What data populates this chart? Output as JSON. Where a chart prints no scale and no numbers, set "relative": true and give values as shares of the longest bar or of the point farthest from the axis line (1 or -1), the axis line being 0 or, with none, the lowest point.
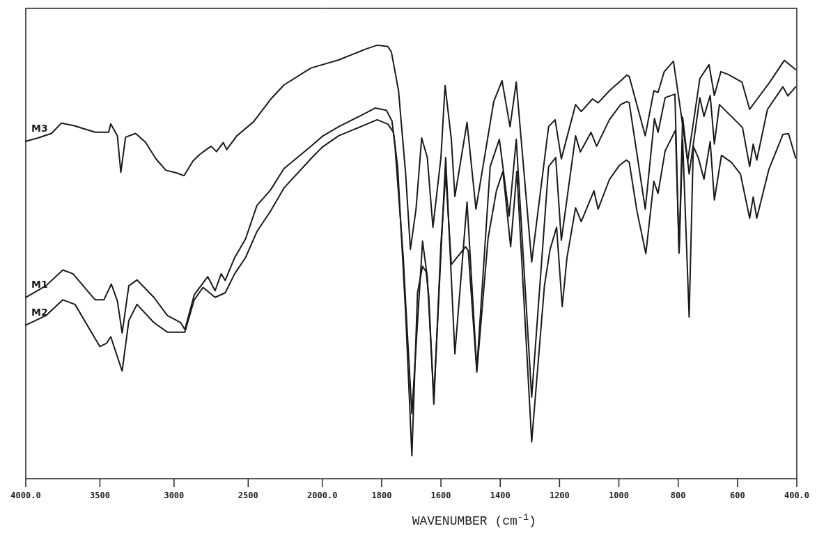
{
  "chart_data": [
    {
      "type": "line",
      "relative": true,
      "xlim": [
        4000,
        2000
      ],
      "xticks": [
        {
          "value": 4000,
          "label": "4000.0"
        },
        3500,
        3000,
        2500,
        {
          "value": 2000,
          "label": "2000.0"
        }
      ],
      "series": [
        {
          "name": "M3",
          "color": "#1a1a1a",
          "x": [
            4000,
            3918,
            3827,
            3759,
            3677,
            3532,
            3441,
            3427,
            3382,
            3359,
            3327,
            3259,
            3191,
            3123,
            3055,
            2986,
            2932,
            2873,
            2827,
            2782,
            2750,
            2714,
            2668,
            2645,
            2577,
            2464,
            2350,
            2259,
            2077,
            2000
          ],
          "values": [
            0.815,
            0.823,
            0.834,
            0.859,
            0.853,
            0.837,
            0.837,
            0.857,
            0.828,
            0.74,
            0.825,
            0.834,
            0.812,
            0.773,
            0.745,
            0.739,
            0.732,
            0.767,
            0.783,
            0.795,
            0.803,
            0.79,
            0.812,
            0.795,
            0.828,
            0.862,
            0.916,
            0.951,
            0.992,
            1
          ]
        },
        {
          "name": "M1",
          "color": "#1a1a1a",
          "x": [
            4000,
            3864,
            3750,
            3682,
            3532,
            3473,
            3423,
            3382,
            3350,
            3305,
            3250,
            3136,
            3045,
            2955,
            2927,
            2864,
            2773,
            2723,
            2682,
            2655,
            2591,
            2518,
            2441,
            2350,
            2259,
            2077,
            2000
          ],
          "values": [
            0.438,
            0.466,
            0.504,
            0.495,
            0.432,
            0.432,
            0.47,
            0.429,
            0.352,
            0.466,
            0.48,
            0.438,
            0.394,
            0.377,
            0.36,
            0.444,
            0.488,
            0.454,
            0.495,
            0.479,
            0.534,
            0.579,
            0.66,
            0.697,
            0.749,
            0.803,
            0.827
          ]
        },
        {
          "name": "M2",
          "color": "#1a1a1a",
          "x": [
            4000,
            3864,
            3750,
            3668,
            3500,
            3455,
            3427,
            3350,
            3305,
            3250,
            3136,
            3045,
            2927,
            2864,
            2805,
            2723,
            2655,
            2591,
            2518,
            2441,
            2350,
            2259,
            2077,
            2000
          ],
          "values": [
            0.371,
            0.394,
            0.432,
            0.421,
            0.319,
            0.327,
            0.343,
            0.26,
            0.382,
            0.421,
            0.377,
            0.354,
            0.354,
            0.432,
            0.462,
            0.438,
            0.449,
            0.495,
            0.534,
            0.597,
            0.646,
            0.702,
            0.773,
            0.801
          ]
        }
      ]
    },
    {
      "type": "line",
      "relative": true,
      "xlabel": "WAVENUMBER (cm$^{-1}$)",
      "xlim": [
        2000,
        400
      ],
      "xticks": [
        1800,
        1600,
        1400,
        1200,
        1000,
        800,
        600,
        {
          "value": 400,
          "label": "400.0"
        }
      ],
      "series": [
        {
          "color": "#1a1a1a",
          "x": [
            2000,
            1945,
            1850,
            1815,
            1779,
            1767,
            1743,
            1719,
            1703,
            1684,
            1665,
            1646,
            1627,
            1600,
            1586,
            1565,
            1553,
            1512,
            1482,
            1422,
            1394,
            1367,
            1346,
            1294,
            1237,
            1215,
            1194,
            1146,
            1127,
            1089,
            1070,
            1032,
            994,
            973,
            965,
            911,
            882,
            868,
            847,
            816,
            792,
            768,
            727,
            696,
            678,
            656,
            630,
            585,
            559,
            542,
            494,
            442,
            404
          ],
          "values": [
            0.955,
            0.966,
            0.992,
            1,
            0.997,
            0.984,
            0.895,
            0.703,
            0.529,
            0.622,
            0.786,
            0.741,
            0.58,
            0.741,
            0.907,
            0.783,
            0.651,
            0.822,
            0.622,
            0.87,
            0.918,
            0.812,
            0.915,
            0.5,
            0.812,
            0.828,
            0.738,
            0.863,
            0.847,
            0.876,
            0.867,
            0.895,
            0.918,
            0.931,
            0.928,
            0.791,
            0.895,
            0.891,
            0.939,
            0.963,
            0.85,
            0.732,
            0.923,
            0.955,
            0.884,
            0.939,
            0.932,
            0.915,
            0.852,
            0.868,
            0.912,
            0.965,
            0.944
          ]
        },
        {
          "color": "#1a1a1a",
          "x": [
            2000,
            1945,
            1869,
            1822,
            1784,
            1765,
            1755,
            1727,
            1717,
            1698,
            1662,
            1646,
            1624,
            1584,
            1553,
            1512,
            1479,
            1434,
            1403,
            1370,
            1346,
            1294,
            1237,
            1213,
            1194,
            1146,
            1130,
            1094,
            1075,
            1032,
            994,
            973,
            965,
            911,
            880,
            868,
            844,
            811,
            797,
            785,
            763,
            727,
            713,
            692,
            678,
            661,
            621,
            583,
            559,
            547,
            535,
            499,
            447,
            430,
            404
          ],
          "values": [
            0.79,
            0.812,
            0.838,
            0.855,
            0.85,
            0.825,
            0.767,
            0.51,
            0.381,
            0.15,
            0.548,
            0.465,
            0.185,
            0.741,
            0.288,
            0.638,
            0.252,
            0.72,
            0.783,
            0.606,
            0.783,
            0.188,
            0.72,
            0.741,
            0.55,
            0.791,
            0.754,
            0.799,
            0.767,
            0.828,
            0.863,
            0.87,
            0.867,
            0.622,
            0.831,
            0.799,
            0.879,
            0.887,
            0.521,
            0.834,
            0.703,
            0.879,
            0.836,
            0.884,
            0.772,
            0.863,
            0.836,
            0.81,
            0.72,
            0.772,
            0.735,
            0.852,
            0.904,
            0.883,
            0.904
          ]
        },
        {
          "color": "#1a1a1a",
          "x": [
            2000,
            1945,
            1850,
            1815,
            1779,
            1760,
            1746,
            1719,
            1698,
            1679,
            1662,
            1650,
            1641,
            1624,
            1600,
            1584,
            1565,
            1517,
            1508,
            1479,
            1441,
            1413,
            1391,
            1365,
            1344,
            1294,
            1251,
            1232,
            1210,
            1191,
            1175,
            1146,
            1127,
            1084,
            1070,
            1032,
            999,
            975,
            965,
            939,
            909,
            882,
            868,
            844,
            809,
            797,
            785,
            763,
            749,
            732,
            713,
            692,
            678,
            654,
            621,
            590,
            559,
            547,
            535,
            494,
            447,
            428,
            404
          ],
          "values": [
            0.765,
            0.791,
            0.818,
            0.828,
            0.818,
            0.799,
            0.72,
            0.381,
            0.053,
            0.429,
            0.49,
            0.477,
            0.421,
            0.172,
            0.542,
            0.703,
            0.494,
            0.535,
            0.526,
            0.246,
            0.555,
            0.664,
            0.709,
            0.535,
            0.709,
            0.085,
            0.445,
            0.529,
            0.58,
            0.397,
            0.51,
            0.625,
            0.593,
            0.664,
            0.622,
            0.69,
            0.722,
            0.735,
            0.73,
            0.617,
            0.519,
            0.686,
            0.658,
            0.756,
            0.804,
            0.521,
            0.783,
            0.373,
            0.767,
            0.74,
            0.691,
            0.778,
            0.643,
            0.746,
            0.73,
            0.703,
            0.601,
            0.65,
            0.601,
            0.714,
            0.794,
            0.796,
            0.74
          ]
        }
      ]
    }
  ]
}
